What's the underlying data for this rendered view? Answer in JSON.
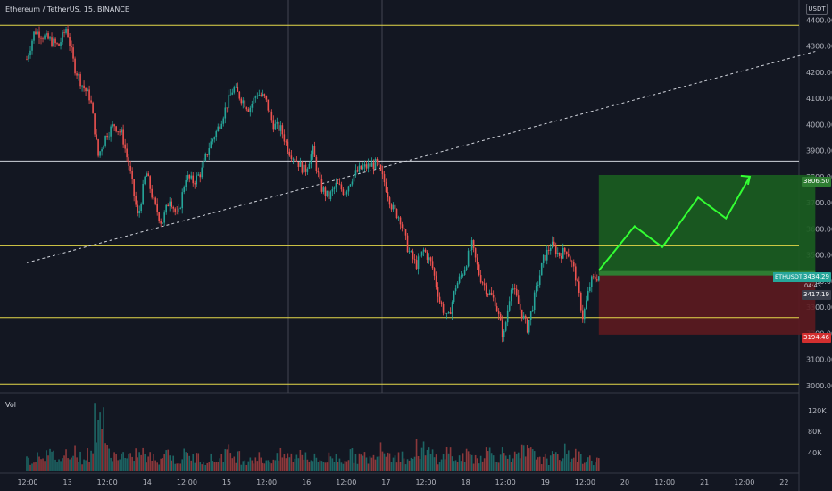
{
  "header": {
    "title": "Ethereum / TetherUS, 15, BINANCE",
    "vol_label": "Vol",
    "currency": "USDT"
  },
  "colors": {
    "bg": "#131722",
    "up": "#26a69a",
    "down": "#ef5350",
    "yellow": "#e5d94a",
    "white": "#d1d4dc",
    "target": "#1b5e20",
    "stop": "#5d1a1f",
    "path": "#33ff33"
  },
  "chart_data": {
    "type": "candlestick",
    "symbol": "ETHUSDT",
    "price_axis": {
      "ticks": [
        4400,
        4300,
        4200,
        4100,
        4000,
        3900,
        3800,
        3700,
        3600,
        3500,
        3400,
        3300,
        3200,
        3100,
        3000
      ],
      "range": [
        2980,
        4470
      ]
    },
    "volume_axis": {
      "ticks": [
        "120K",
        "80K",
        "40K"
      ]
    },
    "time_axis": {
      "labels": [
        "12:00",
        "13",
        "12:00",
        "14",
        "12:00",
        "15",
        "12:00",
        "16",
        "12:00",
        "17",
        "12:00",
        "18",
        "12:00",
        "19",
        "12:00",
        "20",
        "12:00",
        "21",
        "12:00",
        "22"
      ]
    },
    "horizontal_levels": [
      {
        "price": 4380,
        "color": "yellow"
      },
      {
        "price": 3860,
        "color": "white"
      },
      {
        "price": 3535,
        "color": "yellow"
      },
      {
        "price": 3260,
        "color": "yellow"
      },
      {
        "price": 3005,
        "color": "yellow"
      }
    ],
    "trendline": {
      "from": {
        "t": 0.0,
        "p": 3470
      },
      "to": {
        "t": 19.85,
        "p": 4280
      },
      "style": "dashed"
    },
    "close_path": [
      [
        0.0,
        4250
      ],
      [
        0.2,
        4360
      ],
      [
        0.5,
        4330
      ],
      [
        0.8,
        4300
      ],
      [
        1.0,
        4370
      ],
      [
        1.2,
        4220
      ],
      [
        1.4,
        4150
      ],
      [
        1.6,
        4100
      ],
      [
        1.8,
        3880
      ],
      [
        2.0,
        3960
      ],
      [
        2.2,
        4000
      ],
      [
        2.4,
        3960
      ],
      [
        2.6,
        3820
      ],
      [
        2.8,
        3640
      ],
      [
        3.0,
        3820
      ],
      [
        3.2,
        3700
      ],
      [
        3.4,
        3620
      ],
      [
        3.6,
        3720
      ],
      [
        3.8,
        3640
      ],
      [
        4.0,
        3800
      ],
      [
        4.2,
        3780
      ],
      [
        4.4,
        3820
      ],
      [
        4.6,
        3920
      ],
      [
        4.8,
        3980
      ],
      [
        5.0,
        4060
      ],
      [
        5.2,
        4140
      ],
      [
        5.4,
        4100
      ],
      [
        5.6,
        4060
      ],
      [
        5.8,
        4120
      ],
      [
        6.0,
        4100
      ],
      [
        6.2,
        4000
      ],
      [
        6.4,
        3980
      ],
      [
        6.6,
        3900
      ],
      [
        6.8,
        3860
      ],
      [
        7.0,
        3820
      ],
      [
        7.2,
        3900
      ],
      [
        7.4,
        3760
      ],
      [
        7.6,
        3720
      ],
      [
        7.8,
        3770
      ],
      [
        8.0,
        3740
      ],
      [
        8.2,
        3800
      ],
      [
        8.4,
        3830
      ],
      [
        8.6,
        3840
      ],
      [
        8.8,
        3850
      ],
      [
        9.0,
        3780
      ],
      [
        9.2,
        3680
      ],
      [
        9.4,
        3640
      ],
      [
        9.6,
        3520
      ],
      [
        9.8,
        3460
      ],
      [
        10.0,
        3520
      ],
      [
        10.2,
        3460
      ],
      [
        10.4,
        3320
      ],
      [
        10.6,
        3250
      ],
      [
        10.8,
        3380
      ],
      [
        11.0,
        3440
      ],
      [
        11.2,
        3540
      ],
      [
        11.4,
        3420
      ],
      [
        11.6,
        3360
      ],
      [
        11.8,
        3320
      ],
      [
        12.0,
        3180
      ],
      [
        12.2,
        3390
      ],
      [
        12.4,
        3300
      ],
      [
        12.6,
        3220
      ],
      [
        12.8,
        3350
      ],
      [
        13.0,
        3480
      ],
      [
        13.2,
        3540
      ],
      [
        13.4,
        3500
      ],
      [
        13.6,
        3520
      ],
      [
        13.8,
        3430
      ],
      [
        14.0,
        3260
      ],
      [
        14.2,
        3400
      ],
      [
        14.4,
        3420
      ]
    ],
    "volume_profile": [
      0.18,
      0.3,
      0.25,
      0.2,
      0.35,
      0.22,
      0.26,
      0.9,
      0.32,
      0.25,
      0.2,
      0.28,
      0.22,
      0.2,
      0.3,
      0.18,
      0.25,
      0.22,
      0.2,
      0.18,
      0.3,
      0.25,
      0.2,
      0.22,
      0.18,
      0.2,
      0.25,
      0.22,
      0.3,
      0.2,
      0.18,
      0.22,
      0.2,
      0.25,
      0.22,
      0.2,
      0.45,
      0.3,
      0.25,
      0.2,
      0.35,
      0.28,
      0.22,
      0.3,
      0.2,
      0.25,
      0.22,
      0.3,
      0.26,
      0.28,
      0.22,
      0.3,
      0.25,
      0.2,
      0.22,
      0.3,
      0.25,
      0.2,
      0.18,
      0.15
    ],
    "position": {
      "type": "long",
      "start_t": 14.4,
      "end_t": 19.85,
      "target": 3806.5,
      "entry": 3428,
      "stop": 3194.46
    },
    "forecast_path": [
      [
        14.4,
        3440
      ],
      [
        15.3,
        3610
      ],
      [
        16.0,
        3530
      ],
      [
        16.9,
        3720
      ],
      [
        17.6,
        3640
      ],
      [
        18.2,
        3800
      ]
    ],
    "labels": {
      "target": "3806.50",
      "current": "3434.29",
      "timer": "04:43",
      "last": "3417.19",
      "stop": "3194.46",
      "symbol": "ETHUSDT"
    }
  }
}
